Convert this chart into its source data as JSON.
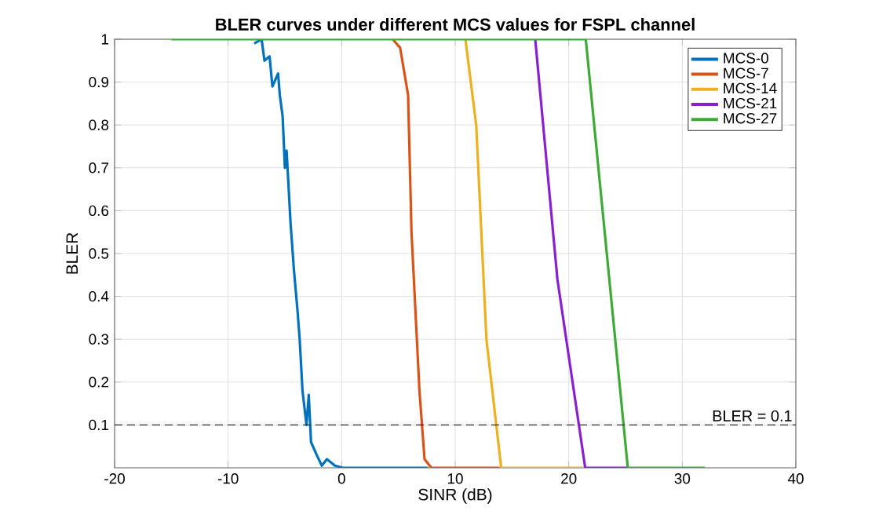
{
  "chart_data": {
    "type": "line",
    "title": "BLER curves under different MCS values for FSPL channel",
    "xlabel": "SINR (dB)",
    "ylabel": "BLER",
    "xlim": [
      -20,
      40
    ],
    "xticks": [
      -20,
      -10,
      0,
      10,
      20,
      30,
      40
    ],
    "ylim": [
      0,
      1
    ],
    "yticks": [
      0.1,
      0.2,
      0.3,
      0.4,
      0.5,
      0.6,
      0.7,
      0.8,
      0.9,
      1
    ],
    "grid": true,
    "legend": "top right",
    "line_style": "solid",
    "marker": "none",
    "ref_lines": [
      {
        "axis": "y",
        "value": 0.1,
        "label": "BLER = 0.1",
        "color": "#000000",
        "line_style": "dashed"
      }
    ],
    "series": [
      {
        "name": "MCS-0",
        "color": "#0072bd",
        "x": [
          -7.7,
          -7.05,
          -6.8,
          -6.35,
          -6.1,
          -5.6,
          -5.45,
          -5.2,
          -5.0,
          -4.85,
          -4.5,
          -4.2,
          -3.9,
          -3.7,
          -3.45,
          -3.1,
          -2.9,
          -2.7,
          -2.2,
          -1.75,
          -1.3,
          -0.6,
          0.1,
          7.6
        ],
        "values": [
          0.99,
          1,
          0.95,
          0.96,
          0.89,
          0.92,
          0.87,
          0.82,
          0.7,
          0.74,
          0.57,
          0.46,
          0.37,
          0.3,
          0.18,
          0.1,
          0.17,
          0.06,
          0.03,
          0.005,
          0.02,
          0.005,
          0,
          0
        ]
      },
      {
        "name": "MCS-7",
        "color": "#d95319",
        "x": [
          4.5,
          5.15,
          5.85,
          6.15,
          6.85,
          7.3,
          7.9,
          13.9
        ],
        "values": [
          1,
          0.98,
          0.87,
          0.55,
          0.18,
          0.02,
          0,
          0
        ]
      },
      {
        "name": "MCS-14",
        "color": "#edb120",
        "x": [
          10.9,
          11.85,
          12.75,
          14.05,
          21.5
        ],
        "values": [
          1,
          0.8,
          0.3,
          0,
          0
        ]
      },
      {
        "name": "MCS-21",
        "color": "#8a1fd0",
        "x": [
          17.05,
          19.0,
          21.45,
          25.2
        ],
        "values": [
          1,
          0.44,
          0,
          0
        ]
      },
      {
        "name": "MCS-27",
        "color": "#3daa35",
        "x": [
          -15,
          21.5,
          25.2,
          32
        ],
        "values": [
          1,
          1,
          0,
          0
        ]
      }
    ]
  }
}
